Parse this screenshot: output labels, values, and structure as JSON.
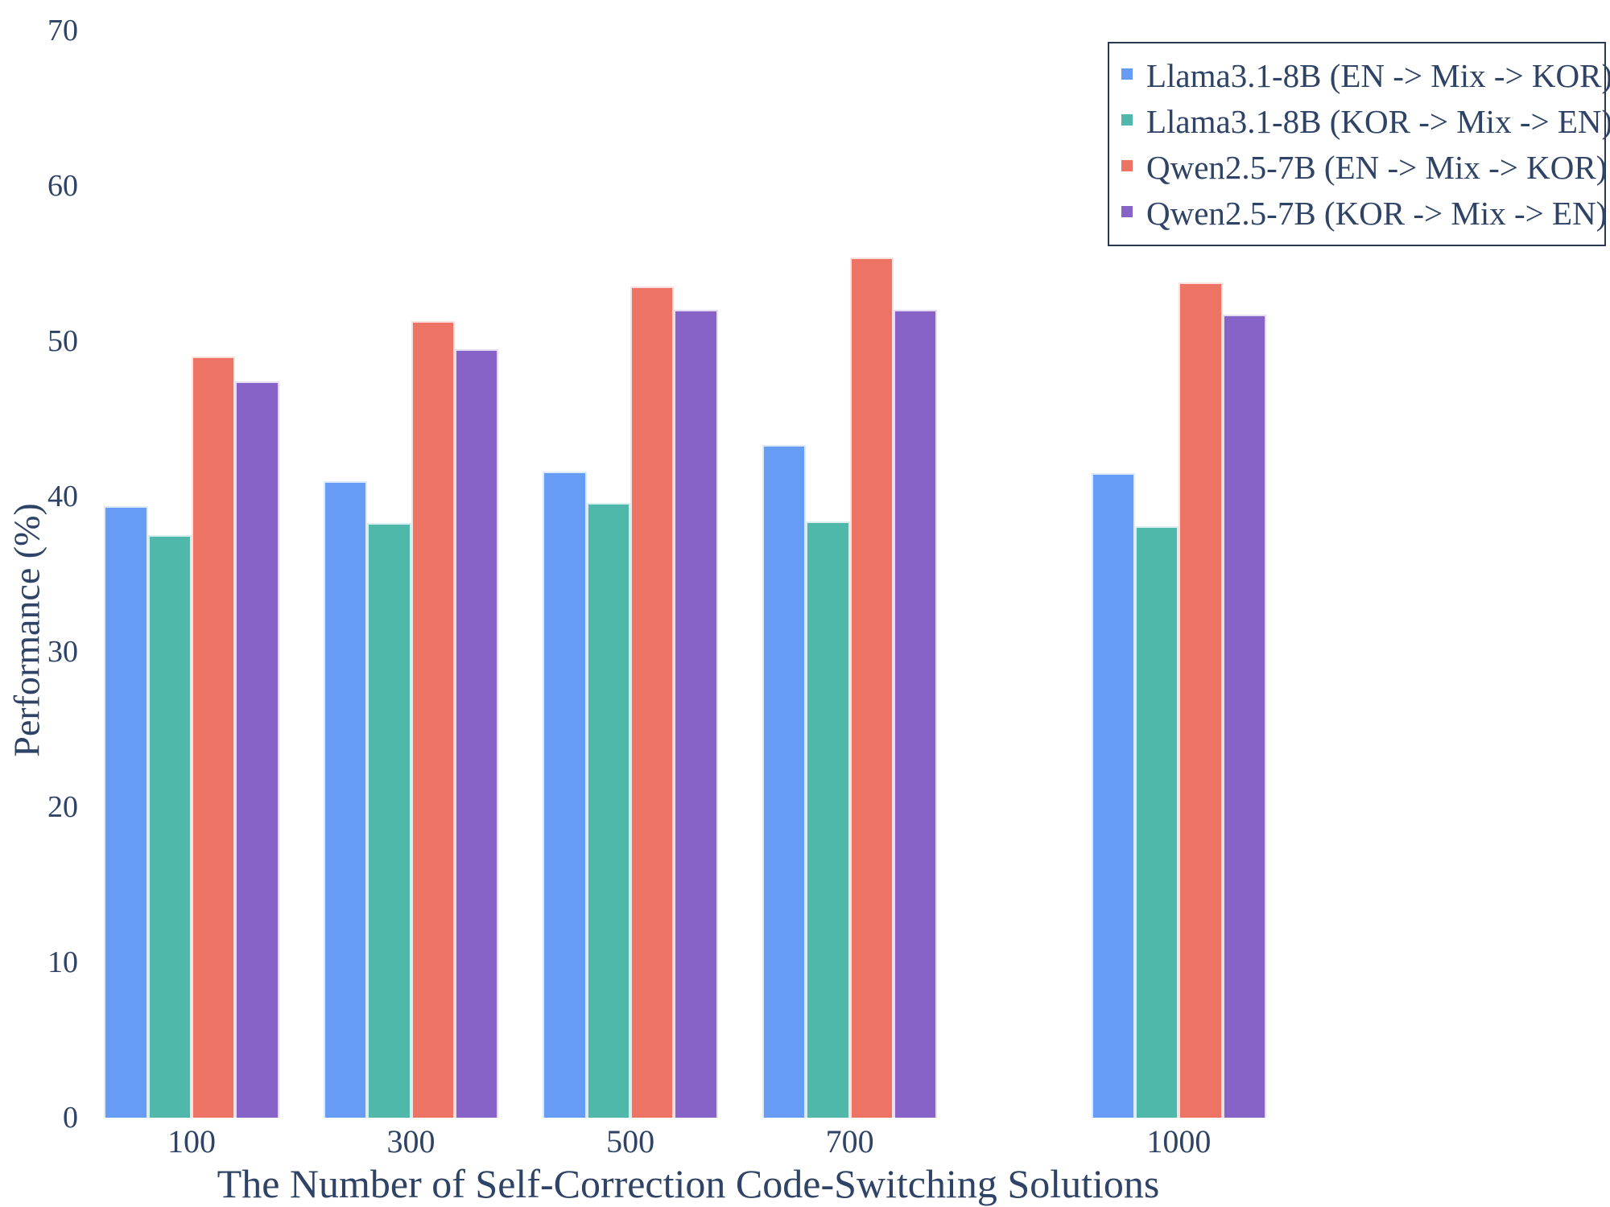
{
  "chart_data": {
    "type": "bar",
    "title": "",
    "xlabel": "The Number of Self-Correction Code-Switching Solutions",
    "ylabel": "Performance (%)",
    "categories": [
      "100",
      "300",
      "500",
      "700",
      "1000"
    ],
    "x": [
      100,
      300,
      500,
      700,
      1000
    ],
    "ylim": [
      0,
      70
    ],
    "yticks": [
      0,
      10,
      20,
      30,
      40,
      50,
      60,
      70
    ],
    "grid": false,
    "axis_lines": false,
    "legend_position": "top-right",
    "series": [
      {
        "name": "Llama3.1-8B (EN -> Mix -> KOR)",
        "color": "#669CF4",
        "values": [
          39.4,
          41.0,
          41.6,
          43.3,
          41.5
        ]
      },
      {
        "name": "Llama3.1-8B (KOR -> Mix -> EN)",
        "color": "#50B8AB",
        "values": [
          37.5,
          38.3,
          39.6,
          38.4,
          38.1
        ]
      },
      {
        "name": "Qwen2.5-7B (EN -> Mix -> KOR)",
        "color": "#ED7365",
        "values": [
          49.0,
          51.3,
          53.5,
          55.4,
          53.8
        ]
      },
      {
        "name": "Qwen2.5-7B (KOR -> Mix -> EN)",
        "color": "#8763C8",
        "values": [
          47.4,
          49.5,
          52.0,
          52.0,
          51.7
        ]
      }
    ],
    "colors": {
      "text": "#2E4366",
      "legend_border": "#2A3950",
      "background": "#FFFFFF"
    }
  }
}
